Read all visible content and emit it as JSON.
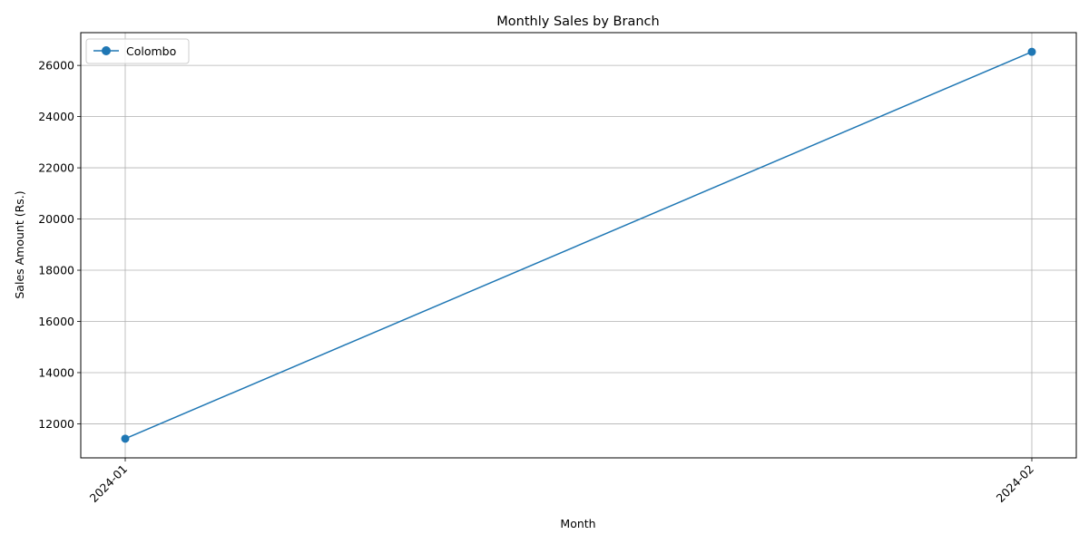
{
  "chart_data": {
    "type": "line",
    "title": "Monthly Sales by Branch",
    "xlabel": "Month",
    "ylabel": "Sales Amount (Rs.)",
    "categories": [
      "2024-01",
      "2024-02"
    ],
    "series": [
      {
        "name": "Colombo",
        "values": [
          11420,
          26530
        ],
        "color": "#1f77b4",
        "marker": "circle"
      }
    ],
    "ylim": [
      10670,
      27280
    ],
    "yticks": [
      12000,
      14000,
      16000,
      18000,
      20000,
      22000,
      24000,
      26000
    ],
    "grid": true,
    "legend_position": "top-left"
  }
}
